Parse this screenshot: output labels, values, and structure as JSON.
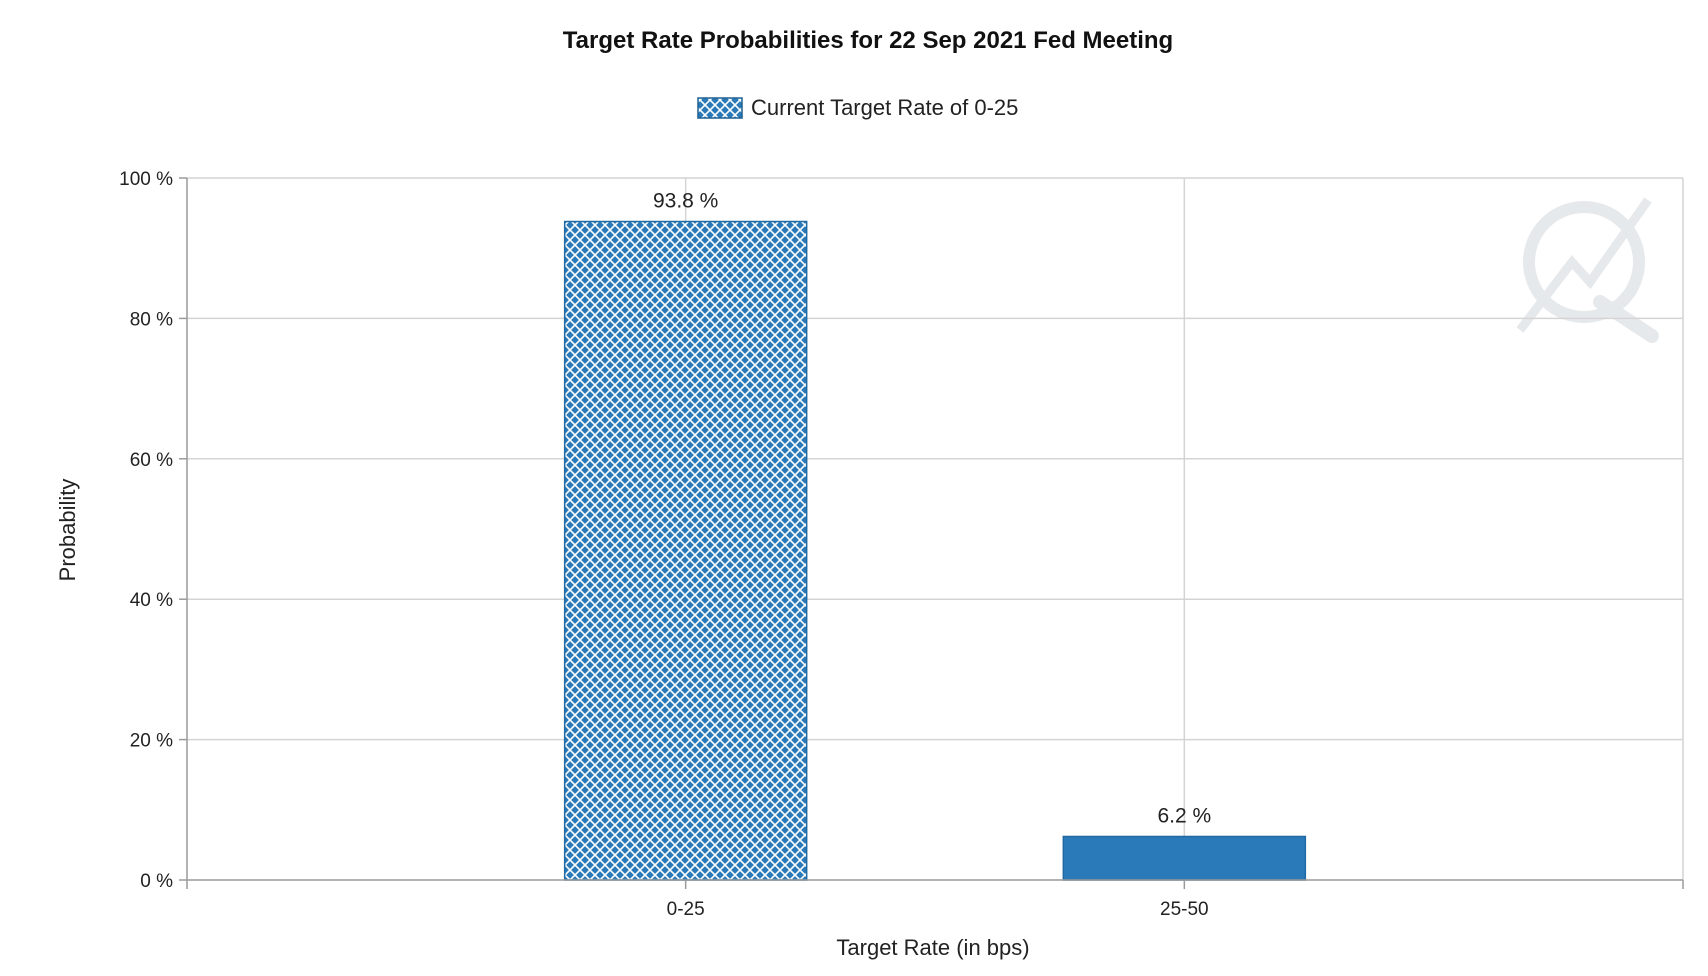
{
  "chart_data": {
    "type": "bar",
    "title": "Target Rate Probabilities for 22 Sep 2021 Fed Meeting",
    "legend": {
      "label": "Current Target Rate of 0-25",
      "placement": "top-center"
    },
    "xlabel": "Target Rate (in bps)",
    "ylabel": "Probability",
    "categories": [
      "0-25",
      "25-50"
    ],
    "values": [
      93.8,
      6.2
    ],
    "data_labels": [
      "93.8 %",
      "6.2 %"
    ],
    "ylim": [
      0,
      100
    ],
    "y_ticks": [
      0,
      20,
      40,
      60,
      80,
      100
    ],
    "y_tick_labels": [
      "0 %",
      "20 %",
      "40 %",
      "60 %",
      "80 %",
      "100 %"
    ],
    "grid": true,
    "bar_styles": [
      "crosshatch",
      "solid"
    ],
    "colors": {
      "bar": "#2a7ab9",
      "grid": "#d4d4d4",
      "axis": "#9a9a9a",
      "hatch": "#ffffff"
    },
    "watermark_icon": "quikstrike-logo-icon"
  }
}
